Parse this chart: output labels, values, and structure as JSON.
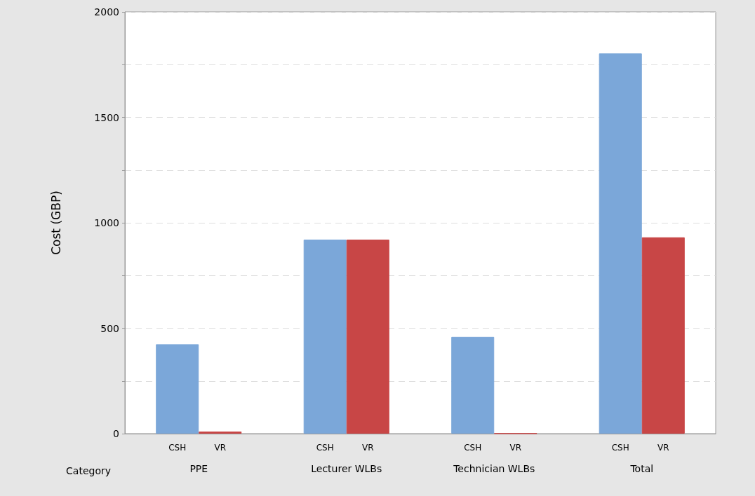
{
  "chart_data": {
    "type": "bar",
    "ylabel": "Cost (GBP)",
    "xlabel": "Category",
    "categories": [
      "PPE",
      "Lecturer WLBs",
      "Technician WLBs",
      "Total"
    ],
    "series": [
      {
        "name": "CSH",
        "color": "#7ba7d9",
        "values": [
          424,
          920,
          459,
          1803
        ]
      },
      {
        "name": "VR",
        "color": "#c84646",
        "values": [
          10,
          920,
          1,
          931
        ]
      }
    ],
    "ylim": [
      0,
      2000
    ],
    "yticks": [
      0,
      {
        "value": 250,
        "label": null
      },
      500,
      {
        "value": 750,
        "label": null
      },
      1000,
      {
        "value": 1250,
        "label": null
      },
      1500,
      {
        "value": 1750,
        "label": null
      },
      2000
    ],
    "grid": "y",
    "legend": false
  }
}
